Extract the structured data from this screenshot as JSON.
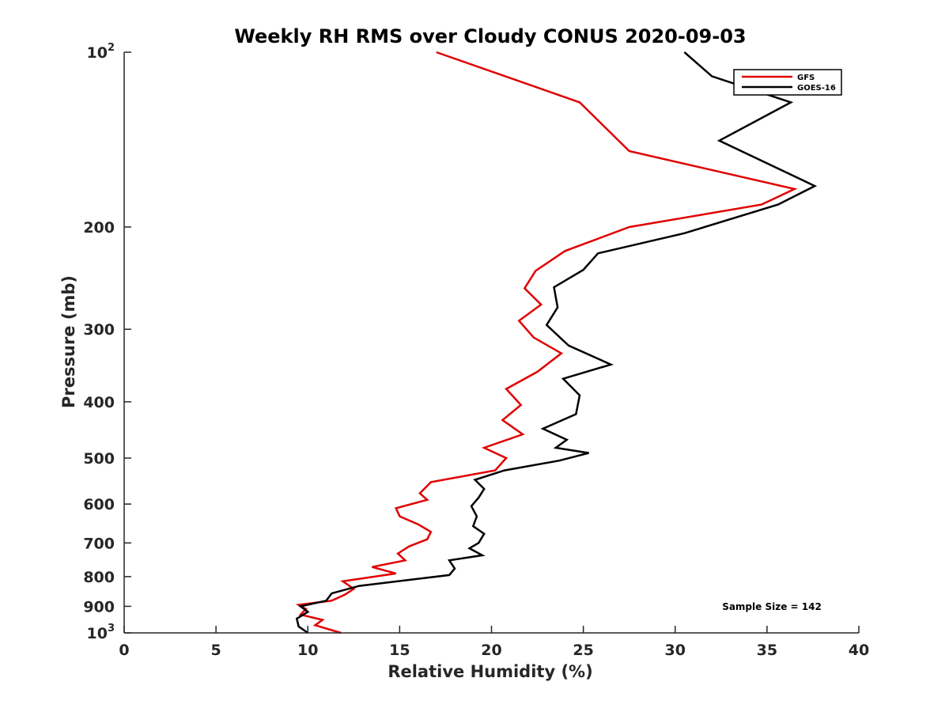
{
  "chart_data": {
    "type": "line",
    "title": "Weekly RH RMS over Cloudy CONUS 2020-09-03",
    "xlabel": "Relative Humidity (%)",
    "ylabel": "Pressure (mb)",
    "xlim": [
      0,
      40
    ],
    "ylim": [
      100,
      1000
    ],
    "y_scale": "log",
    "y_reversed": true,
    "x_ticks": [
      "0",
      "5",
      "10",
      "15",
      "20",
      "25",
      "30",
      "35",
      "40"
    ],
    "y_ticks": [
      {
        "value": 100,
        "label": "10",
        "sup": "2"
      },
      {
        "value": 200,
        "label": "200",
        "sup": ""
      },
      {
        "value": 300,
        "label": "300",
        "sup": ""
      },
      {
        "value": 400,
        "label": "400",
        "sup": ""
      },
      {
        "value": 500,
        "label": "500",
        "sup": ""
      },
      {
        "value": 600,
        "label": "600",
        "sup": ""
      },
      {
        "value": 700,
        "label": "700",
        "sup": ""
      },
      {
        "value": 800,
        "label": "800",
        "sup": ""
      },
      {
        "value": 900,
        "label": "900",
        "sup": ""
      },
      {
        "value": 1000,
        "label": "10",
        "sup": "3"
      }
    ],
    "legend_position": "top-right",
    "annotation": "Sample Size = 142",
    "series": [
      {
        "name": "GFS",
        "color": "#e00000",
        "x": [
          17.0,
          24.8,
          27.5,
          36.5,
          34.7,
          27.5,
          24.0,
          22.4,
          21.8,
          22.7,
          21.5,
          22.3,
          23.8,
          22.5,
          20.8,
          21.6,
          20.6,
          21.7,
          19.6,
          20.8,
          20.2,
          16.7,
          16.1,
          16.5,
          14.8,
          15.0,
          16.0,
          16.7,
          16.5,
          15.5,
          14.9,
          15.3,
          13.5,
          14.8,
          11.9,
          12.5,
          12.0,
          11.3,
          9.5,
          9.9,
          9.6,
          10.8,
          10.4,
          11.8
        ],
        "y": [
          100,
          122,
          148,
          172,
          183,
          200,
          220,
          238,
          255,
          272,
          290,
          310,
          330,
          355,
          380,
          405,
          430,
          455,
          480,
          500,
          525,
          550,
          575,
          590,
          610,
          630,
          650,
          670,
          690,
          710,
          730,
          750,
          770,
          790,
          815,
          840,
          860,
          880,
          895,
          910,
          930,
          950,
          970,
          1000
        ]
      },
      {
        "name": "GOES-16",
        "color": "#000000",
        "x": [
          30.5,
          32.0,
          36.3,
          32.4,
          37.6,
          35.6,
          30.5,
          25.8,
          25.0,
          23.4,
          23.6,
          23.0,
          24.2,
          26.5,
          23.9,
          24.8,
          24.6,
          22.8,
          24.1,
          23.5,
          25.3,
          23.7,
          20.7,
          19.1,
          19.6,
          19.3,
          18.9,
          19.2,
          19.0,
          19.6,
          19.3,
          18.8,
          19.5,
          17.7,
          18.0,
          17.7,
          12.8,
          11.3,
          11.0,
          9.6,
          10.0,
          9.4,
          9.5,
          10.0
        ],
        "y": [
          100,
          110,
          122,
          142,
          170,
          183,
          205,
          222,
          237,
          254,
          275,
          295,
          320,
          345,
          365,
          390,
          420,
          445,
          465,
          480,
          490,
          505,
          525,
          545,
          565,
          585,
          605,
          630,
          655,
          675,
          700,
          715,
          735,
          750,
          775,
          795,
          830,
          855,
          880,
          900,
          920,
          945,
          975,
          1000
        ]
      }
    ]
  }
}
